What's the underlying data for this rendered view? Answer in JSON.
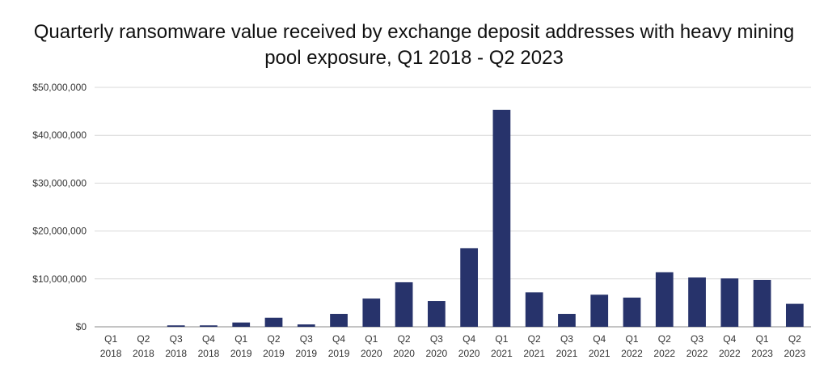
{
  "chart_data": {
    "type": "bar",
    "title_lines": [
      "Quarterly ransomware value received by exchange deposit addresses with heavy mining",
      "pool exposure, Q1 2018 - Q2 2023"
    ],
    "xlabel": "",
    "ylabel": "",
    "ylim": [
      0,
      50000000
    ],
    "yticks": [
      0,
      10000000,
      20000000,
      30000000,
      40000000,
      50000000
    ],
    "ytick_labels": [
      "$0",
      "$10,000,000",
      "$20,000,000",
      "$30,000,000",
      "$40,000,000",
      "$50,000,000"
    ],
    "grid": true,
    "legend": "none",
    "bar_color": "#27336b",
    "categories": [
      [
        "Q1",
        "2018"
      ],
      [
        "Q2",
        "2018"
      ],
      [
        "Q3",
        "2018"
      ],
      [
        "Q4",
        "2018"
      ],
      [
        "Q1",
        "2019"
      ],
      [
        "Q2",
        "2019"
      ],
      [
        "Q3",
        "2019"
      ],
      [
        "Q4",
        "2019"
      ],
      [
        "Q1",
        "2020"
      ],
      [
        "Q2",
        "2020"
      ],
      [
        "Q3",
        "2020"
      ],
      [
        "Q4",
        "2020"
      ],
      [
        "Q1",
        "2021"
      ],
      [
        "Q2",
        "2021"
      ],
      [
        "Q3",
        "2021"
      ],
      [
        "Q4",
        "2021"
      ],
      [
        "Q1",
        "2022"
      ],
      [
        "Q2",
        "2022"
      ],
      [
        "Q3",
        "2022"
      ],
      [
        "Q4",
        "2022"
      ],
      [
        "Q1",
        "2023"
      ],
      [
        "Q2",
        "2023"
      ]
    ],
    "values": [
      0,
      0,
      300000,
      300000,
      900000,
      1900000,
      500000,
      2700000,
      5900000,
      9300000,
      5400000,
      16400000,
      45300000,
      7200000,
      2700000,
      6700000,
      6100000,
      11400000,
      10300000,
      10100000,
      9800000,
      4800000
    ]
  }
}
